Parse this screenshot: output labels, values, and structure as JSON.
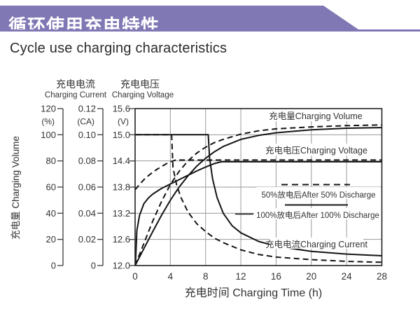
{
  "banner": {
    "title": "循环使用充电特性",
    "color": "#8078b4"
  },
  "subtitle": "Cycle use charging characteristics",
  "chart_data": {
    "type": "line",
    "title": "Cycle use charging characteristics",
    "grid": true,
    "legend_position": "inside-right",
    "x_axis": {
      "label": "充电时间 Charging Time (h)",
      "range": [
        0,
        28
      ],
      "ticks": [
        "0",
        "4",
        "8",
        "12",
        "16",
        "20",
        "24",
        "28"
      ]
    },
    "axes": [
      {
        "id": "volume",
        "title_cn": "充电量",
        "title_en": "Charging Volume",
        "side_label": "充电量 Charging Volume",
        "unit": "(%)",
        "range": [
          0,
          120
        ],
        "ticks": [
          "120",
          "100",
          "80",
          "60",
          "40",
          "20",
          "0"
        ]
      },
      {
        "id": "current",
        "title_cn": "充电电流",
        "title_en": "Charging Current",
        "unit": "(CA)",
        "range": [
          0,
          0.12
        ],
        "ticks": [
          "0.12",
          "0.10",
          "0.08",
          "0.06",
          "0.04",
          "0.02",
          "0"
        ]
      },
      {
        "id": "voltage",
        "title_cn": "充电电压",
        "title_en": "Charging Voltage",
        "unit": "(V)",
        "range": [
          12.0,
          15.6
        ],
        "ticks": [
          "15.6",
          "15.0",
          "14.4",
          "13.8",
          "13.2",
          "12.6",
          "12.0"
        ]
      }
    ],
    "series": [
      {
        "name": "charging-volume-after-50-discharge",
        "scale": "volume",
        "style": "dashed",
        "points": [
          [
            0,
            0
          ],
          [
            1,
            17
          ],
          [
            2,
            34
          ],
          [
            3,
            49
          ],
          [
            4,
            62
          ],
          [
            5,
            72
          ],
          [
            6,
            80
          ],
          [
            7,
            86
          ],
          [
            8,
            90.5
          ],
          [
            9,
            94
          ],
          [
            10,
            96.5
          ],
          [
            12,
            100.5
          ],
          [
            14,
            103
          ],
          [
            16,
            104.5
          ],
          [
            20,
            106
          ],
          [
            24,
            107
          ],
          [
            28,
            107.5
          ]
        ]
      },
      {
        "name": "charging-volume-after-100-discharge",
        "scale": "volume",
        "style": "solid",
        "points": [
          [
            0,
            0
          ],
          [
            1,
            13
          ],
          [
            2,
            26
          ],
          [
            3,
            38.5
          ],
          [
            4,
            50
          ],
          [
            5,
            60
          ],
          [
            6,
            68.5
          ],
          [
            7,
            76
          ],
          [
            8,
            82
          ],
          [
            9,
            87
          ],
          [
            10,
            91
          ],
          [
            12,
            96.5
          ],
          [
            14,
            99.5
          ],
          [
            16,
            101.5
          ],
          [
            20,
            103.8
          ],
          [
            24,
            105
          ],
          [
            28,
            105.5
          ]
        ]
      },
      {
        "name": "charging-voltage-after-50-discharge",
        "scale": "voltage",
        "style": "dashed",
        "points": [
          [
            0,
            13.74
          ],
          [
            0.5,
            13.86
          ],
          [
            1,
            13.97
          ],
          [
            1.5,
            14.06
          ],
          [
            2,
            14.14
          ],
          [
            2.5,
            14.21
          ],
          [
            3,
            14.27
          ],
          [
            3.5,
            14.33
          ],
          [
            4,
            14.38
          ],
          [
            4.6,
            14.42
          ],
          [
            28,
            14.42
          ]
        ]
      },
      {
        "name": "charging-voltage-after-100-discharge",
        "scale": "voltage",
        "style": "solid",
        "points": [
          [
            0.05,
            12.05
          ],
          [
            0.2,
            12.8
          ],
          [
            0.5,
            13.15
          ],
          [
            1,
            13.42
          ],
          [
            1.5,
            13.55
          ],
          [
            2,
            13.64
          ],
          [
            3,
            13.77
          ],
          [
            4,
            13.87
          ],
          [
            5,
            13.97
          ],
          [
            6,
            14.07
          ],
          [
            7,
            14.17
          ],
          [
            8,
            14.26
          ],
          [
            9,
            14.34
          ],
          [
            9.8,
            14.38
          ],
          [
            28,
            14.38
          ]
        ]
      },
      {
        "name": "charging-current-after-50-discharge",
        "scale": "current",
        "style": "dashed",
        "points": [
          [
            0,
            0.1
          ],
          [
            4.15,
            0.1
          ],
          [
            4.3,
            0.075
          ],
          [
            4.7,
            0.062
          ],
          [
            5.2,
            0.052
          ],
          [
            6,
            0.041
          ],
          [
            7,
            0.032
          ],
          [
            8,
            0.026
          ],
          [
            9,
            0.021
          ],
          [
            10,
            0.0175
          ],
          [
            12,
            0.012
          ],
          [
            14,
            0.0085
          ],
          [
            16,
            0.0065
          ],
          [
            20,
            0.0045
          ],
          [
            24,
            0.0032
          ],
          [
            28,
            0.0025
          ]
        ]
      },
      {
        "name": "charging-current-after-100-discharge",
        "scale": "current",
        "style": "solid",
        "points": [
          [
            0,
            0.1
          ],
          [
            8.3,
            0.1
          ],
          [
            8.45,
            0.082
          ],
          [
            8.8,
            0.066
          ],
          [
            9.3,
            0.052
          ],
          [
            10,
            0.04
          ],
          [
            11,
            0.0305
          ],
          [
            12,
            0.025
          ],
          [
            14,
            0.0185
          ],
          [
            16,
            0.0148
          ],
          [
            20,
            0.0108
          ],
          [
            24,
            0.0088
          ],
          [
            28,
            0.0075
          ]
        ]
      }
    ],
    "labels": [
      {
        "id": "volume-label",
        "text": "充电量Charging Volume"
      },
      {
        "id": "voltage-label",
        "text": "充电电压Charging Voltage"
      },
      {
        "id": "legend-50",
        "text": "50%放电后After 50% Discharge"
      },
      {
        "id": "legend-100",
        "text": "100%放电后After 100% Discharge"
      },
      {
        "id": "current-label",
        "text": "充电电流Charging Current"
      }
    ]
  }
}
